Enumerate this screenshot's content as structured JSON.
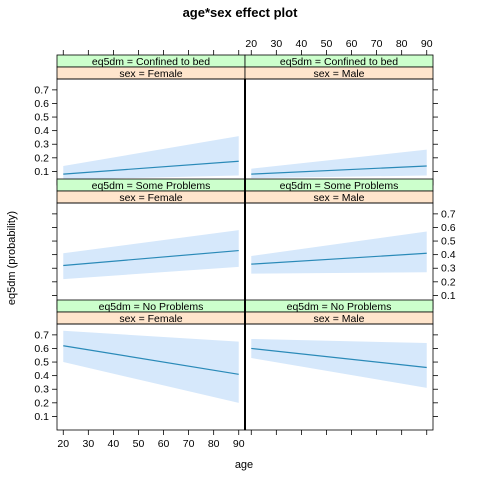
{
  "chart_data": {
    "type": "line",
    "title": "age*sex effect plot",
    "xlabel": "age",
    "ylabel": "eq5dm (probability)",
    "xlim": [
      17.5,
      92.5
    ],
    "ylim": [
      0.0,
      0.78
    ],
    "x_ticks": [
      20,
      30,
      40,
      50,
      60,
      70,
      80,
      90
    ],
    "y_ticks": [
      0.1,
      0.2,
      0.3,
      0.4,
      0.5,
      0.6,
      0.7
    ],
    "colors": {
      "line": "#2a8ab8",
      "band": "#d6e8fb",
      "strip_top": "#ccffcc",
      "strip_bottom": "#ffe5cc"
    },
    "panels": [
      {
        "row": 0,
        "col": 0,
        "strip_top": "eq5dm = Confined to bed",
        "strip_bottom": "sex = Female",
        "x": [
          20,
          90
        ],
        "fit": [
          0.08,
          0.175
        ],
        "lower": [
          0.04,
          0.07
        ],
        "upper": [
          0.14,
          0.36
        ]
      },
      {
        "row": 0,
        "col": 1,
        "strip_top": "eq5dm = Confined to bed",
        "strip_bottom": "sex = Male",
        "x": [
          20,
          90
        ],
        "fit": [
          0.08,
          0.14
        ],
        "lower": [
          0.05,
          0.07
        ],
        "upper": [
          0.12,
          0.26
        ]
      },
      {
        "row": 1,
        "col": 0,
        "strip_top": "eq5dm = Some Problems",
        "strip_bottom": "sex = Female",
        "x": [
          20,
          90
        ],
        "fit": [
          0.32,
          0.43
        ],
        "lower": [
          0.22,
          0.31
        ],
        "upper": [
          0.41,
          0.58
        ]
      },
      {
        "row": 1,
        "col": 1,
        "strip_top": "eq5dm = Some Problems",
        "strip_bottom": "sex = Male",
        "x": [
          20,
          90
        ],
        "fit": [
          0.33,
          0.41
        ],
        "lower": [
          0.26,
          0.27
        ],
        "upper": [
          0.39,
          0.57
        ]
      },
      {
        "row": 2,
        "col": 0,
        "strip_top": "eq5dm = No Problems",
        "strip_bottom": "sex = Female",
        "x": [
          20,
          90
        ],
        "fit": [
          0.62,
          0.41
        ],
        "lower": [
          0.5,
          0.2
        ],
        "upper": [
          0.73,
          0.65
        ]
      },
      {
        "row": 2,
        "col": 1,
        "strip_top": "eq5dm = No Problems",
        "strip_bottom": "sex = Male",
        "x": [
          20,
          90
        ],
        "fit": [
          0.6,
          0.46
        ],
        "lower": [
          0.53,
          0.31
        ],
        "upper": [
          0.67,
          0.64
        ]
      }
    ]
  }
}
